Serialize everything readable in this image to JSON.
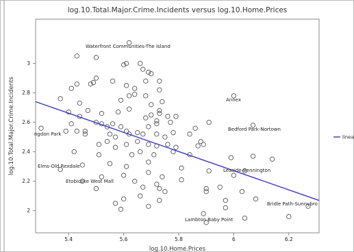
{
  "chart_data": {
    "type": "scatter",
    "title": "log.10.Total.Major.Crime.Incidents versus log.10.Home.Prices",
    "x_label": "log.10.Home.Prices",
    "y_label": "log.10.Total.Major.Crime.Incidents",
    "marker_color": "#555555",
    "x": [
      5.62,
      5.43,
      5.5,
      5.6,
      5.61,
      5.66,
      5.67,
      5.69,
      5.7,
      5.5,
      5.43,
      5.41,
      5.49,
      5.48,
      5.56,
      5.64,
      5.61,
      5.68,
      5.73,
      5.73,
      5.64,
      5.62,
      5.68,
      5.59,
      5.37,
      5.44,
      5.7,
      5.74,
      6.0,
      5.4,
      5.47,
      5.52,
      5.58,
      5.62,
      5.73,
      5.73,
      5.44,
      5.68,
      5.7,
      5.72,
      5.76,
      5.79,
      5.5,
      5.39,
      5.41,
      5.43,
      5.46,
      5.52,
      5.54,
      5.56,
      5.59,
      5.61,
      5.65,
      5.69,
      5.72,
      5.77,
      6.07,
      5.86,
      5.91,
      5.46,
      5.55,
      5.57,
      5.62,
      5.67,
      5.72,
      5.75,
      5.78,
      5.84,
      5.88,
      5.87,
      5.89,
      5.3,
      5.51,
      5.54,
      5.61,
      5.65,
      5.69,
      5.72,
      5.76,
      5.79,
      5.42,
      5.51,
      5.57,
      5.63,
      5.66,
      5.71,
      5.78,
      5.84,
      6.07,
      6.14,
      5.99,
      5.45,
      5.55,
      5.61,
      5.69,
      5.81,
      5.91,
      6.04,
      5.37,
      5.52,
      5.6,
      5.69,
      5.74,
      6.0,
      5.45,
      5.64,
      5.72,
      5.81,
      5.5,
      5.67,
      5.73,
      5.9,
      5.95,
      5.6,
      5.66,
      5.75,
      5.9,
      6.03,
      5.57,
      5.69,
      5.73,
      5.97,
      6.08,
      5.59,
      5.97,
      5.89,
      6.04,
      6.2,
      6.27,
      5.9
    ],
    "y": [
      3.14,
      3.05,
      3.04,
      2.99,
      3.0,
      3.0,
      2.96,
      2.94,
      2.93,
      2.9,
      2.86,
      2.83,
      2.87,
      2.86,
      2.88,
      2.83,
      2.85,
      2.88,
      2.88,
      2.82,
      2.79,
      2.78,
      2.78,
      2.75,
      2.76,
      2.73,
      2.72,
      2.74,
      2.78,
      2.67,
      2.68,
      2.66,
      2.67,
      2.69,
      2.66,
      2.68,
      2.64,
      2.63,
      2.65,
      2.61,
      2.64,
      2.64,
      2.6,
      2.54,
      2.59,
      2.54,
      2.54,
      2.59,
      2.57,
      2.59,
      2.57,
      2.54,
      2.53,
      2.57,
      2.59,
      2.6,
      2.58,
      2.56,
      2.6,
      2.52,
      2.52,
      2.5,
      2.52,
      2.52,
      2.52,
      2.5,
      2.53,
      2.52,
      2.47,
      2.44,
      2.45,
      2.56,
      2.45,
      2.47,
      2.45,
      2.47,
      2.45,
      2.44,
      2.45,
      2.43,
      2.4,
      2.38,
      2.43,
      2.38,
      2.4,
      2.38,
      2.4,
      2.38,
      2.37,
      2.35,
      2.36,
      2.31,
      2.32,
      2.3,
      2.33,
      2.29,
      2.27,
      2.27,
      2.28,
      2.23,
      2.24,
      2.26,
      2.23,
      2.24,
      2.2,
      2.2,
      2.18,
      2.21,
      2.15,
      2.16,
      2.15,
      2.15,
      2.16,
      2.08,
      2.1,
      2.13,
      2.13,
      2.13,
      2.05,
      2.03,
      2.07,
      2.07,
      2.08,
      2.01,
      2.02,
      1.98,
      1.95,
      1.96,
      2.03,
      1.92
    ],
    "line": {
      "name": "linea",
      "color": "#3434cc",
      "x": [
        5.28,
        6.31
      ],
      "y": [
        2.74,
        2.07
      ]
    },
    "annotations": [
      "Waterfront Communities-The Island",
      "Annex",
      "Bedford Park-Nortown",
      "ngdon Park",
      "Elms-Old Rexdale",
      "Etobicoke West Mall",
      "Leaside-Bennington",
      "Bridle Path-Sunnybro",
      "Lambton Baby Point"
    ],
    "xlim": [
      5.28,
      6.31
    ],
    "ylim": [
      1.85,
      3.3
    ],
    "xticks": [
      5.4,
      5.6,
      5.8,
      6,
      6.2
    ],
    "yticks": [
      2,
      2.2,
      2.4,
      2.6,
      2.8,
      3
    ]
  }
}
